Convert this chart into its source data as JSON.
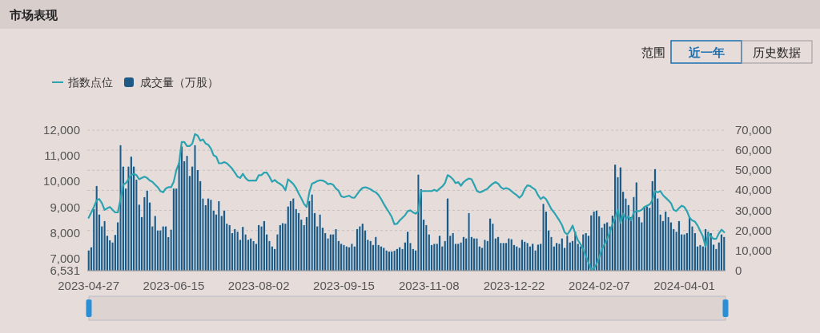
{
  "chart_data": {
    "type": "bar",
    "title": "市场表现",
    "annotations": [
      "范围",
      "近一年",
      "历史数据"
    ],
    "legend": "top left",
    "grid": "y",
    "ylim": [
      6531,
      12000
    ],
    "yticks": [
      {
        "value": 6531,
        "label": "6,531"
      },
      {
        "value": 7000,
        "label": "7,000"
      },
      {
        "value": 8000,
        "label": "8,000"
      },
      {
        "value": 9000,
        "label": "9,000"
      },
      {
        "value": 10000,
        "label": "10,000"
      },
      {
        "value": 11000,
        "label": "11,000"
      },
      {
        "value": 12000,
        "label": "12,000"
      }
    ],
    "y2lim": [
      0,
      70000
    ],
    "y2ticks": [
      0,
      {
        "value": 10000,
        "label": "10,000"
      },
      {
        "value": 20000,
        "label": "20,000"
      },
      {
        "value": 30000,
        "label": "30,000"
      },
      {
        "value": 40000,
        "label": "40,000"
      },
      {
        "value": 50000,
        "label": "50,000"
      },
      {
        "value": 60000,
        "label": "60,000"
      },
      {
        "value": 70000,
        "label": "70,000"
      }
    ],
    "categories": [
      "2023-04-27",
      null,
      null,
      null,
      null,
      null,
      null,
      null,
      null,
      null,
      null,
      null,
      null,
      null,
      null,
      null,
      null,
      null,
      null,
      null,
      null,
      null,
      null,
      null,
      null,
      null,
      null,
      null,
      null,
      null,
      null,
      null,
      "2023-06-15",
      null,
      null,
      null,
      null,
      null,
      null,
      null,
      null,
      null,
      null,
      null,
      null,
      null,
      null,
      null,
      null,
      null,
      null,
      null,
      null,
      null,
      null,
      null,
      null,
      null,
      null,
      null,
      null,
      null,
      null,
      null,
      "2023-08-02",
      null,
      null,
      null,
      null,
      null,
      null,
      null,
      null,
      null,
      null,
      null,
      null,
      null,
      null,
      null,
      null,
      null,
      null,
      null,
      null,
      null,
      null,
      null,
      null,
      null,
      null,
      null,
      null,
      null,
      null,
      null,
      "2023-09-15",
      null,
      null,
      null,
      null,
      null,
      null,
      null,
      null,
      null,
      null,
      null,
      null,
      null,
      null,
      null,
      null,
      null,
      null,
      null,
      null,
      null,
      null,
      null,
      null,
      null,
      null,
      null,
      null,
      null,
      null,
      null,
      "2023-11-08",
      null,
      null,
      null,
      null,
      null,
      null,
      null,
      null,
      null,
      null,
      null,
      null,
      null,
      null,
      null,
      null,
      null,
      null,
      null,
      null,
      null,
      null,
      null,
      null,
      null,
      null,
      null,
      null,
      null,
      null,
      null,
      "2023-12-22",
      null,
      null,
      null,
      null,
      null,
      null,
      null,
      null,
      null,
      null,
      null,
      null,
      null,
      null,
      null,
      null,
      null,
      null,
      null,
      null,
      null,
      null,
      null,
      null,
      null,
      null,
      null,
      null,
      null,
      null,
      null,
      "2024-02-07",
      null,
      null,
      null,
      null,
      null,
      null,
      null,
      null,
      null,
      null,
      null,
      null,
      null,
      null,
      null,
      null,
      null,
      null,
      null,
      null,
      null,
      null,
      null,
      null,
      null,
      null,
      null,
      null,
      null,
      null,
      null,
      "2024-04-01",
      null,
      null,
      null,
      null,
      null,
      null,
      null,
      null,
      null,
      null,
      null,
      null,
      null,
      null,
      null
    ],
    "series": [
      {
        "name": "成交量（万股）",
        "type": "bar",
        "axis": "y2",
        "color": "#1f5a84",
        "values": [
          10200,
          11800,
          30700,
          42300,
          28100,
          22200,
          24800,
          17500,
          15200,
          14200,
          17900,
          24200,
          62600,
          52000,
          41000,
          52000,
          56900,
          52000,
          45400,
          33000,
          26800,
          36700,
          40000,
          34100,
          22200,
          27400,
          20200,
          20200,
          22200,
          22200,
          16800,
          20600,
          41000,
          41000,
          54000,
          62000,
          54600,
          57300,
          47300,
          52000,
          62600,
          50200,
          44700,
          36100,
          32700,
          36100,
          35400,
          30100,
          28100,
          34700,
          27400,
          30100,
          23500,
          22800,
          18800,
          20800,
          19500,
          15500,
          21900,
          18200,
          15500,
          16200,
          14800,
          13500,
          22800,
          22200,
          24800,
          18200,
          14900,
          12200,
          10900,
          18200,
          22800,
          23800,
          23500,
          32100,
          34800,
          36100,
          30800,
          28800,
          25500,
          22800,
          26800,
          34800,
          38100,
          28800,
          22200,
          28100,
          21500,
          18800,
          16200,
          18200,
          18200,
          20800,
          14900,
          13500,
          12900,
          12200,
          11800,
          13500,
          12200,
          20800,
          22200,
          23500,
          20200,
          15500,
          14900,
          12900,
          16900,
          12900,
          12200,
          11500,
          10200,
          9600,
          9600,
          10000,
          10900,
          11800,
          10900,
          14200,
          19500,
          13900,
          10900,
          10200,
          48000,
          40700,
          25500,
          22800,
          18200,
          12900,
          13500,
          13500,
          17500,
          12200,
          14900,
          36100,
          17500,
          18800,
          13500,
          13500,
          14200,
          16900,
          16200,
          28800,
          16900,
          16200,
          16200,
          12200,
          11500,
          15500,
          14900,
          26100,
          23500,
          16200,
          16900,
          13900,
          13900,
          13900,
          16200,
          15800,
          12900,
          12200,
          11500,
          15500,
          14500,
          13900,
          12200,
          13500,
          10200,
          13100,
          13500,
          33400,
          29500,
          20200,
          16900,
          12200,
          13900,
          13500,
          16200,
          11500,
          17500,
          14200,
          14900,
          19500,
          13500,
          12200,
          18200,
          18800,
          17500,
          27700,
          29500,
          30100,
          27200,
          21500,
          23500,
          24200,
          22200,
          27500,
          52900,
          46700,
          51600,
          39400,
          36100,
          32800,
          26800,
          36800,
          44100,
          26800,
          24200,
          32100,
          32100,
          31400,
          44700,
          50700,
          36100,
          28100,
          24800,
          29500,
          26800,
          24200,
          20800,
          19500,
          24800,
          18200,
          18200,
          18800,
          26800,
          22200,
          18800,
          12200,
          12900,
          12200,
          20800,
          19500,
          18800,
          13100,
          10900,
          14200,
          18200,
          16900
        ]
      },
      {
        "name": "指数点位",
        "type": "line",
        "color": "#2ba3b0",
        "values": [
          8590,
          8800,
          9010,
          9270,
          9320,
          9160,
          8900,
          8960,
          9010,
          8900,
          8800,
          8800,
          9320,
          9880,
          9940,
          10090,
          10250,
          10300,
          10250,
          10090,
          10140,
          10190,
          10140,
          10040,
          9990,
          9880,
          9780,
          9630,
          9580,
          9730,
          9780,
          9780,
          9990,
          10450,
          10710,
          11540,
          11540,
          11380,
          11380,
          11480,
          11850,
          11790,
          11590,
          11640,
          11480,
          11430,
          11280,
          11020,
          10970,
          10710,
          10710,
          10760,
          10710,
          10610,
          10500,
          10350,
          10190,
          10140,
          10300,
          10140,
          10040,
          10040,
          10040,
          10040,
          10250,
          10250,
          10350,
          10350,
          10190,
          9990,
          10060,
          9970,
          9910,
          9830,
          9660,
          10090,
          10000,
          9900,
          9750,
          9540,
          9340,
          9130,
          9010,
          9580,
          9920,
          9960,
          10020,
          10050,
          10040,
          9990,
          9900,
          9920,
          9870,
          9730,
          9640,
          9430,
          9390,
          9420,
          9450,
          9380,
          9370,
          9510,
          9650,
          9750,
          9780,
          9750,
          9700,
          9630,
          9580,
          9480,
          9320,
          9130,
          8960,
          8800,
          8620,
          8340,
          8360,
          8490,
          8590,
          8690,
          8850,
          8880,
          8800,
          8750,
          8850,
          9630,
          9630,
          9630,
          9630,
          9630,
          9680,
          9630,
          9730,
          9810,
          9940,
          10250,
          10190,
          10090,
          9940,
          9980,
          9840,
          9980,
          10060,
          10120,
          10090,
          9880,
          9640,
          9580,
          9610,
          9670,
          9720,
          9830,
          9920,
          9980,
          9920,
          9780,
          9710,
          9750,
          9710,
          9630,
          9540,
          9470,
          9370,
          9470,
          9710,
          9850,
          9830,
          9750,
          9680,
          9470,
          9320,
          9400,
          9320,
          9130,
          8930,
          8800,
          8650,
          8490,
          8310,
          8030,
          7940,
          8080,
          8290,
          7980,
          7720,
          7560,
          7360,
          7100,
          6840,
          6580,
          6630,
          6790,
          7050,
          7360,
          7560,
          7770,
          8030,
          8340,
          8590,
          8900,
          8390,
          8750,
          8540,
          8650,
          8490,
          8800,
          8850,
          8850,
          8900,
          9010,
          9060,
          9110,
          9270,
          9630,
          9580,
          9630,
          9470,
          9370,
          9270,
          9160,
          8900,
          8850,
          8960,
          9060,
          9010,
          8850,
          8590,
          8490,
          8440,
          8290,
          8080,
          7870,
          7460,
          7980,
          7870,
          7770,
          7770,
          7980,
          8130,
          8030
        ]
      }
    ]
  }
}
